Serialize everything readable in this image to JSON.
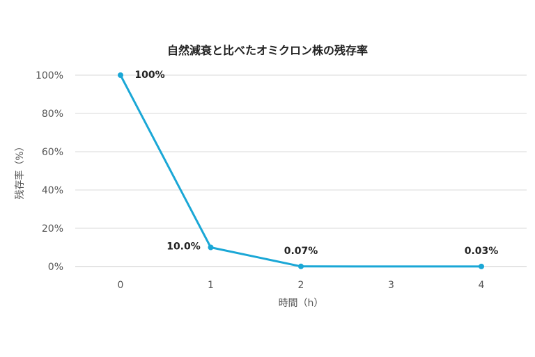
{
  "chart_data": {
    "type": "line",
    "title": "自然減衰と比べたオミクロン株の残存率",
    "xlabel": "時間（h）",
    "ylabel": "残存率（%）",
    "x_ticks": [
      "0",
      "1",
      "2",
      "3",
      "4"
    ],
    "y_ticks": [
      "0%",
      "20%",
      "40%",
      "60%",
      "80%",
      "100%"
    ],
    "xlim": [
      0,
      4
    ],
    "ylim": [
      0,
      100
    ],
    "grid": true,
    "series": [
      {
        "x": [
          0,
          1,
          2,
          4
        ],
        "values": [
          100,
          10.0,
          0.07,
          0.03
        ],
        "labels": [
          "100%",
          "10.0%",
          "0.07%",
          "0.03%"
        ],
        "color": "#1aa7d6"
      }
    ]
  }
}
